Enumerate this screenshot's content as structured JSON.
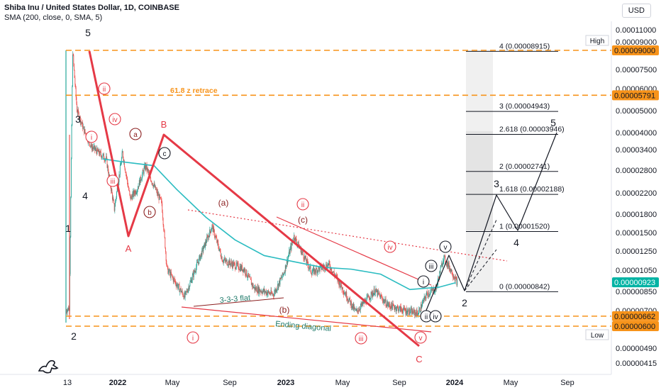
{
  "header": {
    "title": "Shiba Inu / United States Dollar, 1D, COINBASE",
    "indicator": "SMA (200, close, 0, SMA, 5)",
    "currency": "USD"
  },
  "colors": {
    "candle_up": "#26a69a",
    "candle_down": "#ef5350",
    "sma": "#2bbcc1",
    "wave": "#e53946",
    "wave_dark": "#8b1e1e",
    "fib_orange": "#f7931a",
    "last_price": "#00b3a4",
    "grey": "#9e9e9e"
  },
  "chart_data": {
    "type": "line",
    "log_scale": true,
    "x_ticks": [
      "13",
      "2022",
      "May",
      "Sep",
      "2023",
      "May",
      "Sep",
      "2024",
      "May",
      "Sep"
    ],
    "y_ticks": [
      "0.00011000",
      "0.00009000",
      "0.00007500",
      "0.00006000",
      "0.00005000",
      "0.00004000",
      "0.00003400",
      "0.00002800",
      "0.00002200",
      "0.00001800",
      "0.00001500",
      "0.00001250",
      "0.00001050",
      "0.00000850",
      "0.00000700",
      "0.00000600",
      "0.00000490",
      "0.00000415"
    ],
    "price_tags": {
      "high_label": "High",
      "high_value": "0.00009000",
      "retrace_value": "0.00005791",
      "last_value": "0.00000923",
      "level_662": "0.00000662",
      "low_label": "Low",
      "low_value": "0.00000600"
    },
    "fib_levels": [
      {
        "label": "4 (0.00008915)",
        "value": 8.915e-05
      },
      {
        "label": "3 (0.00004943)",
        "value": 4.943e-05
      },
      {
        "label": "2.618 (0.00003946)",
        "value": 3.946e-05
      },
      {
        "label": "2 (0.00002741)",
        "value": 2.741e-05
      },
      {
        "label": "1.618 (0.00002188)",
        "value": 2.188e-05
      },
      {
        "label": "1 (0.00001520)",
        "value": 1.52e-05
      },
      {
        "label": "0 (0.00000842)",
        "value": 8.42e-06
      }
    ],
    "annotations": {
      "retrace": "61.8 z retrace",
      "flat": "3-3-3 flat",
      "diagonal": "Ending diagonal"
    },
    "sma_200": [
      [
        "2021-12-28",
        3.1e-05
      ],
      [
        "2022-02-15",
        3e-05
      ],
      [
        "2022-04-15",
        2.9e-05
      ],
      [
        "2022-06-01",
        2.3e-05
      ],
      [
        "2022-08-01",
        1.75e-05
      ],
      [
        "2022-10-01",
        1.4e-05
      ],
      [
        "2022-12-01",
        1.2e-05
      ],
      [
        "2023-02-01",
        1.13e-05
      ],
      [
        "2023-04-01",
        1.07e-05
      ],
      [
        "2023-06-01",
        1.05e-05
      ],
      [
        "2023-08-01",
        1e-05
      ],
      [
        "2023-10-01",
        8.6e-06
      ],
      [
        "2023-12-01",
        8.8e-06
      ],
      [
        "2024-01-05",
        9.2e-06
      ]
    ]
  }
}
